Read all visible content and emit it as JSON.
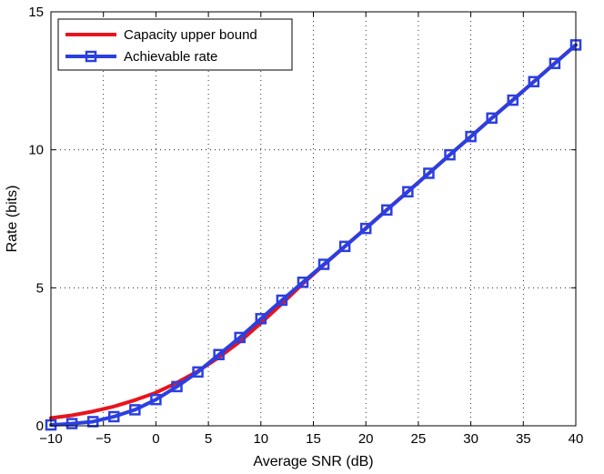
{
  "chart_data": {
    "type": "line",
    "title": "",
    "xlabel": "Average SNR (dB)",
    "ylabel": "Rate (bits)",
    "xlim": [
      -10,
      40
    ],
    "ylim": [
      0,
      15
    ],
    "xticks": [
      -10,
      -5,
      0,
      5,
      10,
      15,
      20,
      25,
      30,
      35,
      40
    ],
    "yticks": [
      0,
      5,
      10,
      15
    ],
    "xtick_labels": [
      "−10",
      "−5",
      "0",
      "5",
      "10",
      "15",
      "20",
      "25",
      "30",
      "35",
      "40"
    ],
    "ytick_labels": [
      "0",
      "5",
      "10",
      "15"
    ],
    "grid": true,
    "legend_position": "top-left",
    "series": [
      {
        "name": "Capacity upper bound",
        "color": "#e8141c",
        "marker": "none",
        "x": [
          -10,
          -8,
          -6,
          -4,
          -2,
          0,
          2,
          4,
          6,
          8,
          10,
          12,
          14,
          16,
          18,
          20,
          22,
          24,
          26,
          28,
          30,
          32,
          34,
          36,
          38,
          40
        ],
        "y": [
          0.28,
          0.38,
          0.52,
          0.7,
          0.93,
          1.2,
          1.56,
          1.98,
          2.48,
          3.05,
          3.72,
          4.42,
          5.15,
          5.83,
          6.5,
          7.16,
          7.83,
          8.49,
          9.15,
          9.82,
          10.48,
          11.15,
          11.81,
          12.47,
          13.14,
          13.8
        ]
      },
      {
        "name": "Achievable rate",
        "color": "#2b3fe0",
        "marker": "square",
        "x": [
          -10,
          -8,
          -6,
          -4,
          -2,
          0,
          2,
          4,
          6,
          8,
          10,
          12,
          14,
          16,
          18,
          20,
          22,
          24,
          26,
          28,
          30,
          32,
          34,
          36,
          38,
          40
        ],
        "y": [
          0.03,
          0.08,
          0.15,
          0.33,
          0.58,
          0.95,
          1.42,
          1.95,
          2.58,
          3.2,
          3.88,
          4.55,
          5.2,
          5.85,
          6.5,
          7.15,
          7.82,
          8.48,
          9.15,
          9.82,
          10.48,
          11.15,
          11.8,
          12.47,
          13.13,
          13.8
        ]
      }
    ]
  }
}
